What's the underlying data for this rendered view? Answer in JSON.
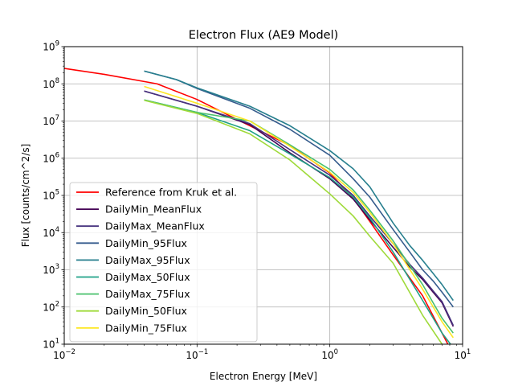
{
  "chart_data": {
    "type": "line",
    "title": "Electron Flux (AE9 Model)",
    "xlabel": "Electron Energy [MeV]",
    "ylabel": "Flux [counts/cm^2/s]",
    "xscale": "log",
    "yscale": "log",
    "xlim": [
      0.01,
      10
    ],
    "ylim": [
      10,
      1000000000
    ],
    "grid": true,
    "legend_position": "lower-left",
    "x_ticks": [
      {
        "value": 0.01,
        "base": "10",
        "exp": "−2"
      },
      {
        "value": 0.1,
        "base": "10",
        "exp": "−1"
      },
      {
        "value": 1,
        "base": "10",
        "exp": "0"
      },
      {
        "value": 10,
        "base": "10",
        "exp": "1"
      }
    ],
    "y_ticks": [
      {
        "value": 10,
        "base": "10",
        "exp": "1"
      },
      {
        "value": 100,
        "base": "10",
        "exp": "2"
      },
      {
        "value": 1000,
        "base": "10",
        "exp": "3"
      },
      {
        "value": 10000,
        "base": "10",
        "exp": "4"
      },
      {
        "value": 100000,
        "base": "10",
        "exp": "5"
      },
      {
        "value": 1000000,
        "base": "10",
        "exp": "6"
      },
      {
        "value": 10000000,
        "base": "10",
        "exp": "7"
      },
      {
        "value": 100000000,
        "base": "10",
        "exp": "8"
      },
      {
        "value": 1000000000,
        "base": "10",
        "exp": "9"
      }
    ],
    "series": [
      {
        "name": "Reference from Kruk et al.",
        "color": "#ff0000",
        "x": [
          0.01,
          0.02,
          0.05,
          0.1,
          0.2,
          0.5,
          1.0,
          1.5,
          2.0,
          3.0,
          5.0,
          7.0,
          8.0
        ],
        "y": [
          260000000,
          180000000,
          100000000,
          38000000,
          11000000,
          2200000,
          400000,
          85000,
          20000,
          2500,
          200,
          20,
          8
        ]
      },
      {
        "name": "DailyMin_MeanFlux",
        "color": "#440154",
        "x": [
          0.04,
          0.1,
          0.25,
          0.5,
          1.0,
          1.5,
          2.0,
          3.0,
          4.0,
          5.0,
          6.0,
          7.0,
          8.5
        ],
        "y": [
          64000000,
          25000000,
          8000000,
          1400000,
          280000,
          80000,
          22000,
          4000,
          1200,
          550,
          250,
          130,
          30
        ]
      },
      {
        "name": "DailyMax_MeanFlux",
        "color": "#46327e",
        "x": [
          0.04,
          0.1,
          0.25,
          0.5,
          1.0,
          1.5,
          2.0,
          3.0,
          4.0,
          5.0,
          6.0,
          7.0,
          8.5
        ],
        "y": [
          64000000,
          25000000,
          8500000,
          1700000,
          350000,
          100000,
          28000,
          5000,
          1400,
          600,
          270,
          140,
          32
        ]
      },
      {
        "name": "DailyMin_95Flux",
        "color": "#365c8d",
        "x": [
          0.04,
          0.07,
          0.1,
          0.25,
          0.5,
          1.0,
          1.5,
          2.0,
          3.0,
          4.0,
          5.0,
          6.0,
          7.0,
          8.5
        ],
        "y": [
          220000000,
          130000000,
          75000000,
          22000000,
          6000000,
          1200000,
          280000,
          90000,
          12000,
          3000,
          1000,
          500,
          250,
          100
        ]
      },
      {
        "name": "DailyMax_95Flux",
        "color": "#277f8e",
        "x": [
          0.04,
          0.07,
          0.1,
          0.25,
          0.5,
          1.0,
          1.5,
          2.0,
          3.0,
          4.0,
          5.0,
          6.0,
          7.0,
          8.5
        ],
        "y": [
          220000000,
          130000000,
          78000000,
          25000000,
          7500000,
          1600000,
          520000,
          170000,
          18000,
          4500,
          1800,
          800,
          400,
          150
        ]
      },
      {
        "name": "DailyMax_50Flux",
        "color": "#1fa187",
        "x": [
          0.04,
          0.1,
          0.25,
          0.5,
          1.0,
          1.5,
          2.0,
          3.0,
          5.0,
          7.0,
          8.5
        ],
        "y": [
          37000000,
          17000000,
          5500000,
          1300000,
          300000,
          90000,
          25000,
          3000,
          150,
          20,
          8
        ]
      },
      {
        "name": "DailyMax_75Flux",
        "color": "#4ac16d",
        "x": [
          0.04,
          0.1,
          0.25,
          0.5,
          1.0,
          1.5,
          2.0,
          3.0,
          5.0,
          7.0,
          8.5
        ],
        "y": [
          37000000,
          17000000,
          10000000,
          2300000,
          500000,
          140000,
          40000,
          6000,
          400,
          50,
          20
        ]
      },
      {
        "name": "DailyMin_50Flux",
        "color": "#9fda3a",
        "x": [
          0.04,
          0.1,
          0.25,
          0.5,
          1.0,
          1.5,
          2.0,
          3.0,
          5.0,
          7.0,
          8.5
        ],
        "y": [
          36000000,
          16000000,
          4500000,
          900000,
          110000,
          28000,
          8000,
          1500,
          60,
          10,
          4
        ]
      },
      {
        "name": "DailyMin_75Flux",
        "color": "#fde725",
        "x": [
          0.04,
          0.1,
          0.25,
          0.5,
          1.0,
          1.5,
          2.0,
          3.0,
          5.0,
          7.0,
          8.5
        ],
        "y": [
          85000000,
          30000000,
          10000000,
          2100000,
          420000,
          120000,
          35000,
          5000,
          300,
          40,
          15
        ]
      }
    ]
  }
}
